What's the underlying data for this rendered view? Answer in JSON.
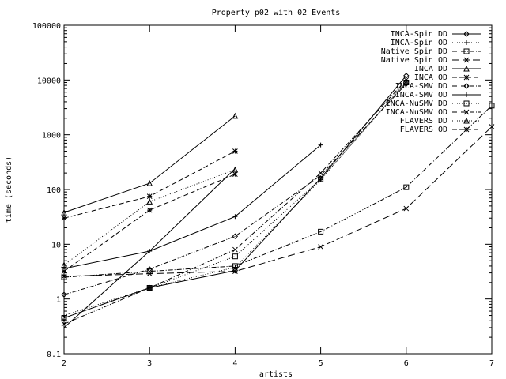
{
  "chart_data": {
    "type": "line",
    "title": "Property p02 with 02 Events",
    "xlabel": "artists",
    "ylabel": "time (seconds)",
    "y_scale": "log",
    "xlim": [
      2,
      7
    ],
    "ylim": [
      0.1,
      100000
    ],
    "x_ticks": [
      2,
      3,
      4,
      5,
      6,
      7
    ],
    "y_ticks": [
      0.1,
      1,
      10,
      100,
      1000,
      10000,
      100000
    ],
    "y_tick_labels": [
      "0.1",
      "1",
      "10",
      "100",
      "1000",
      "10000",
      "100000"
    ],
    "grid": false,
    "legend_position": "top-right",
    "series": [
      {
        "name": "INCA-Spin DD",
        "dash": "solid",
        "marker": "diamond",
        "points": [
          [
            2,
            0.45
          ],
          [
            3,
            1.6
          ],
          [
            4,
            3.3
          ],
          [
            5,
            160
          ],
          [
            6,
            12000
          ]
        ]
      },
      {
        "name": "INCA-Spin OD",
        "dash": "dot",
        "marker": "plus",
        "points": [
          [
            2,
            0.5
          ],
          [
            3,
            1.6
          ],
          [
            4,
            3.8
          ],
          [
            5,
            150
          ],
          [
            6,
            9500
          ]
        ]
      },
      {
        "name": "Native Spin DD",
        "dash": "dashdot",
        "marker": "square",
        "points": [
          [
            2,
            2.5
          ],
          [
            3,
            3.2
          ],
          [
            4,
            4.0
          ],
          [
            5,
            17
          ],
          [
            6,
            110
          ],
          [
            7,
            3400
          ]
        ]
      },
      {
        "name": "Native Spin OD",
        "dash": "longdash",
        "marker": "cross",
        "points": [
          [
            2,
            2.6
          ],
          [
            3,
            2.9
          ],
          [
            4,
            3.2
          ],
          [
            5,
            9
          ],
          [
            6,
            45
          ],
          [
            7,
            1400
          ]
        ]
      },
      {
        "name": "INCA DD",
        "dash": "solid",
        "marker": "triangle",
        "points": [
          [
            2,
            38
          ],
          [
            3,
            130
          ],
          [
            4,
            2200
          ]
        ]
      },
      {
        "name": "INCA OD",
        "dash": "dash",
        "marker": "star",
        "points": [
          [
            2,
            30
          ],
          [
            3,
            75
          ],
          [
            4,
            500
          ]
        ]
      },
      {
        "name": "INCA-SMV DD",
        "dash": "dashdot",
        "marker": "diamond",
        "points": [
          [
            2,
            1.2
          ],
          [
            3,
            3.5
          ],
          [
            4,
            14
          ],
          [
            5,
            180
          ],
          [
            6,
            8500
          ]
        ]
      },
      {
        "name": "INCA-SMV OD",
        "dash": "solid",
        "marker": "plus",
        "points": [
          [
            2,
            3.6
          ],
          [
            3,
            7.5
          ],
          [
            4,
            32
          ],
          [
            5,
            650
          ]
        ]
      },
      {
        "name": "INCA-NuSMV DD",
        "dash": "dot",
        "marker": "square",
        "points": [
          [
            2,
            0.45
          ],
          [
            3,
            1.6
          ],
          [
            4,
            6.0
          ],
          [
            5,
            155
          ],
          [
            6,
            9000
          ]
        ]
      },
      {
        "name": "INCA-NuSMV OD",
        "dash": "dashdot",
        "marker": "cross",
        "points": [
          [
            2,
            0.35
          ],
          [
            3,
            1.6
          ],
          [
            4,
            8.0
          ],
          [
            5,
            200
          ],
          [
            6,
            10000
          ]
        ]
      },
      {
        "name": "FLAVERS DD",
        "dash": "dot",
        "marker": "triangle",
        "points": [
          [
            2,
            4.2
          ],
          [
            3,
            60
          ],
          [
            4,
            230
          ]
        ]
      },
      {
        "name": "FLAVERS OD",
        "dash": "dash",
        "marker": "star",
        "points": [
          [
            2,
            3.2
          ],
          [
            3,
            42
          ],
          [
            4,
            190
          ]
        ]
      },
      {
        "name": "",
        "dash": "solid",
        "marker": "none",
        "points": [
          [
            2,
            0.3
          ],
          [
            3,
            7.5
          ],
          [
            4,
            240
          ]
        ]
      }
    ]
  }
}
